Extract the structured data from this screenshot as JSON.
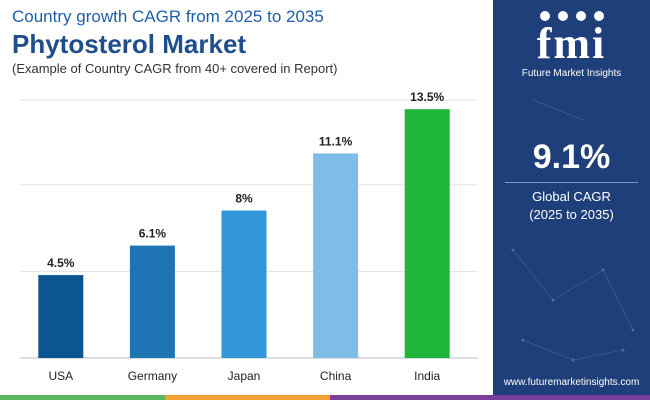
{
  "header": {
    "subtitle": "Country growth CAGR from 2025 to 2035",
    "title": "Phytosterol Market",
    "note": "(Example of Country CAGR from 40+ covered in Report)"
  },
  "chart_data": {
    "type": "bar",
    "categories": [
      "USA",
      "Germany",
      "Japan",
      "China",
      "India"
    ],
    "values": [
      4.5,
      6.1,
      8,
      11.1,
      13.5
    ],
    "value_labels": [
      "4.5%",
      "6.1%",
      "8%",
      "11.1%",
      "13.5%"
    ],
    "bar_colors": [
      "#0d5591",
      "#1f74b4",
      "#3196d8",
      "#7fbde6",
      "#1db53a"
    ],
    "ylim": [
      0,
      14
    ],
    "grid": true,
    "title": "Phytosterol Market",
    "xlabel": "",
    "ylabel": ""
  },
  "sidebar": {
    "logo_text": "fmi",
    "logo_subtitle": "Future Market Insights",
    "stat_value": "9.1%",
    "stat_label_line1": "Global CAGR",
    "stat_label_line2": "(2025 to 2035)",
    "website": "www.futuremarketinsights.com"
  },
  "colors": {
    "panel_bg": "#1f3f7a",
    "title": "#1f4e8c",
    "strip_green": "#5cb85c",
    "strip_orange": "#f0a030",
    "strip_purple": "#7a3f9a"
  }
}
